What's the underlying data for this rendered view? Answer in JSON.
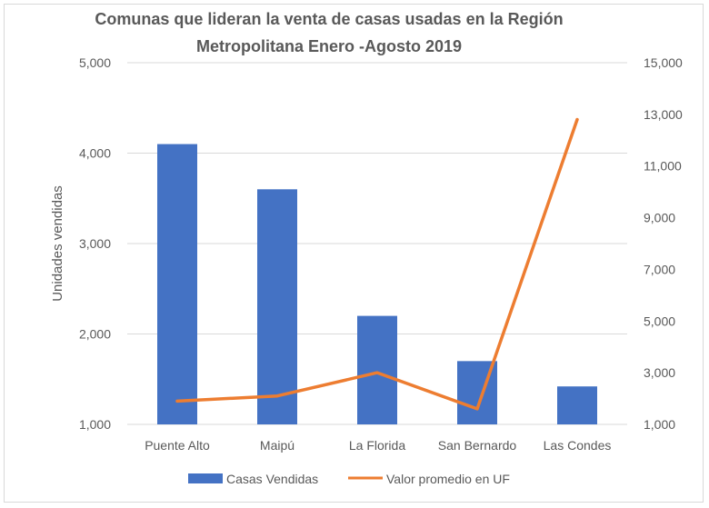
{
  "chart_data": {
    "type": "bar",
    "title_lines": [
      "Comunas que lideran la venta de casas usadas en la Región",
      "Metropolitana  Enero -Agosto 2019"
    ],
    "ylabel": "Unidades vendidas",
    "y2label": "",
    "categories": [
      "Puente Alto",
      "Maipú",
      "La Florida",
      "San Bernardo",
      "Las Condes"
    ],
    "ylim": [
      1000,
      5000
    ],
    "y_ticks": [
      "1,000",
      "2,000",
      "3,000",
      "4,000",
      "5,000"
    ],
    "y2lim": [
      1000,
      15000
    ],
    "y2_ticks": [
      "1,000",
      "3,000",
      "5,000",
      "7,000",
      "9,000",
      "11,000",
      "13,000",
      "15,000"
    ],
    "grid": true,
    "legend_position": "bottom",
    "series": [
      {
        "name": "Casas Vendidas",
        "type": "bar",
        "axis": "left",
        "color": "#4472c4",
        "values": [
          4100,
          3600,
          2200,
          1700,
          1420
        ]
      },
      {
        "name": "Valor promedio en UF",
        "type": "line",
        "axis": "right",
        "color": "#ed7d31",
        "values": [
          1900,
          2100,
          3000,
          1600,
          12800
        ]
      }
    ]
  }
}
